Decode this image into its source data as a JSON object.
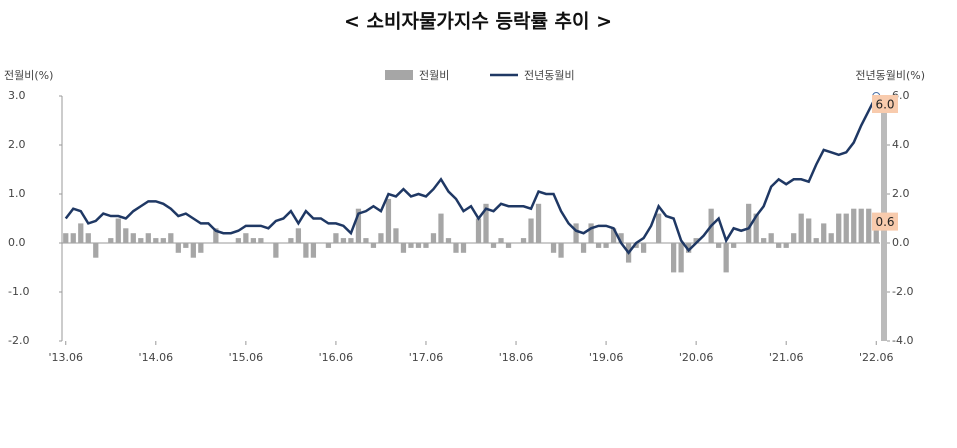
{
  "chart_data": {
    "type": "bar-line",
    "title": "< 소비자물가지수 등락률 추이 >",
    "y_label": "전월비(%)",
    "y2_label": "전년동월비(%)",
    "categories": [
      "'13.06",
      null,
      null,
      null,
      null,
      null,
      null,
      null,
      null,
      null,
      null,
      null,
      "'14.06",
      null,
      null,
      null,
      null,
      null,
      null,
      null,
      null,
      null,
      null,
      null,
      "'15.06",
      null,
      null,
      null,
      null,
      null,
      null,
      null,
      null,
      null,
      null,
      null,
      "'16.06",
      null,
      null,
      null,
      null,
      null,
      null,
      null,
      null,
      null,
      null,
      null,
      "'17.06",
      null,
      null,
      null,
      null,
      null,
      null,
      null,
      null,
      null,
      null,
      null,
      "'18.06",
      null,
      null,
      null,
      null,
      null,
      null,
      null,
      null,
      null,
      null,
      null,
      "'19.06",
      null,
      null,
      null,
      null,
      null,
      null,
      null,
      null,
      null,
      null,
      null,
      "'20.06",
      null,
      null,
      null,
      null,
      null,
      null,
      null,
      null,
      null,
      null,
      null,
      "'21.06",
      null,
      null,
      null,
      null,
      null,
      null,
      null,
      null,
      null,
      null,
      null,
      "'22.06"
    ],
    "series": [
      {
        "name": "전월비",
        "color": "#a6a6a6",
        "kind": "bar",
        "values": [
          0.2,
          0.2,
          0.4,
          0.2,
          -0.3,
          0.0,
          0.1,
          0.5,
          0.3,
          0.2,
          0.1,
          0.2,
          0.1,
          0.1,
          0.2,
          -0.2,
          -0.1,
          -0.3,
          -0.2,
          0.0,
          0.3,
          0.0,
          0.0,
          0.1,
          0.2,
          0.1,
          0.1,
          0.0,
          -0.3,
          0.0,
          0.1,
          0.3,
          -0.3,
          -0.3,
          0.0,
          -0.1,
          0.2,
          0.1,
          0.1,
          0.7,
          0.1,
          -0.1,
          0.2,
          0.9,
          0.3,
          -0.2,
          -0.1,
          -0.1,
          -0.1,
          0.2,
          0.6,
          0.1,
          -0.2,
          -0.2,
          0.0,
          0.5,
          0.8,
          -0.1,
          0.1,
          -0.1,
          0.0,
          0.1,
          0.5,
          0.8,
          0.0,
          -0.2,
          -0.3,
          0.0,
          0.4,
          -0.2,
          0.4,
          -0.1,
          -0.1,
          0.3,
          0.2,
          -0.4,
          -0.1,
          -0.2,
          0.0,
          0.6,
          0.0,
          -0.6,
          -0.6,
          -0.2,
          0.1,
          0.0,
          0.7,
          -0.1,
          -0.6,
          -0.1,
          0.0,
          0.8,
          0.6,
          0.1,
          0.2,
          -0.1,
          -0.1,
          0.2,
          0.6,
          0.5,
          0.1,
          0.4,
          0.2,
          0.6,
          0.6,
          0.7,
          0.7,
          0.7,
          0.6
        ]
      },
      {
        "name": "전년동월비",
        "color": "#1f3864",
        "kind": "line",
        "axis": "y2",
        "values": [
          1.0,
          1.4,
          1.3,
          0.8,
          0.9,
          1.2,
          1.1,
          1.1,
          1.0,
          1.3,
          1.5,
          1.7,
          1.7,
          1.6,
          1.4,
          1.1,
          1.2,
          1.0,
          0.8,
          0.8,
          0.5,
          0.4,
          0.4,
          0.5,
          0.7,
          0.7,
          0.7,
          0.6,
          0.9,
          1.0,
          1.3,
          0.8,
          1.3,
          1.0,
          1.0,
          0.8,
          0.8,
          0.7,
          0.4,
          1.2,
          1.3,
          1.5,
          1.3,
          2.0,
          1.9,
          2.2,
          1.9,
          2.0,
          1.9,
          2.2,
          2.6,
          2.1,
          1.8,
          1.3,
          1.5,
          1.0,
          1.4,
          1.3,
          1.6,
          1.5,
          1.5,
          1.5,
          1.4,
          2.1,
          2.0,
          2.0,
          1.3,
          0.8,
          0.5,
          0.4,
          0.6,
          0.7,
          0.7,
          0.6,
          0.0,
          -0.4,
          0.0,
          0.2,
          0.7,
          1.5,
          1.1,
          1.0,
          0.1,
          -0.3,
          0.0,
          0.3,
          0.7,
          1.0,
          0.1,
          0.6,
          0.5,
          0.6,
          1.1,
          1.5,
          2.3,
          2.6,
          2.4,
          2.6,
          2.6,
          2.5,
          3.2,
          3.8,
          3.7,
          3.6,
          3.7,
          4.1,
          4.8,
          5.4,
          6.0
        ]
      }
    ],
    "ylim": [
      -2,
      3
    ],
    "yticks": [
      {
        "value": 3,
        "label": "3.0"
      },
      {
        "value": 2,
        "label": "2.0"
      },
      {
        "value": 1,
        "label": "1.0"
      },
      {
        "value": 0,
        "label": "0.0"
      },
      {
        "value": -1,
        "label": "-1.0"
      },
      {
        "value": -2,
        "label": "-2.0"
      }
    ],
    "y2lim": [
      -4,
      6
    ],
    "y2ticks": [
      {
        "value": 6,
        "label": "6.0"
      },
      {
        "value": 4,
        "label": "4.0"
      },
      {
        "value": 2,
        "label": "2.0"
      },
      {
        "value": 0,
        "label": "0.0"
      },
      {
        "value": -2,
        "label": "-2.0"
      },
      {
        "value": -4,
        "label": "-4.0"
      }
    ],
    "annotations": [
      {
        "text": "6.0",
        "value": 6.0,
        "axis": "y2"
      },
      {
        "text": "0.6",
        "value": 0.6,
        "axis": "y"
      }
    ]
  }
}
